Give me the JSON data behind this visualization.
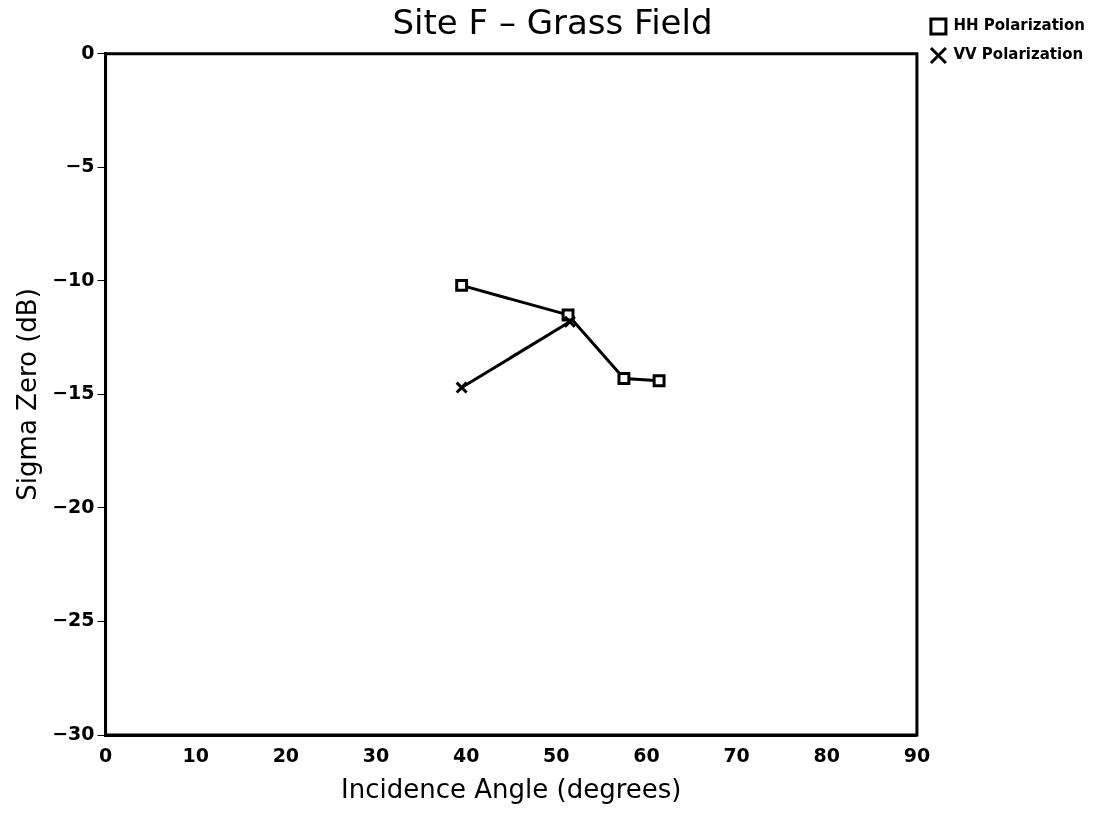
{
  "chart_data": {
    "type": "line",
    "title": "Site F – Grass Field",
    "xlabel": "Incidence Angle (degrees)",
    "ylabel": "Sigma Zero (dB)",
    "xlim": [
      0,
      90
    ],
    "xticks": [
      0,
      10,
      20,
      30,
      40,
      50,
      60,
      70,
      80,
      90
    ],
    "ylim": [
      -30,
      0
    ],
    "yticks": [
      -30,
      -25,
      -20,
      -15,
      -10,
      -5,
      0
    ],
    "grid": false,
    "legend": "top right",
    "line_style": "solid",
    "series": [
      {
        "name": "HH Polarization",
        "color": "#000000",
        "marker": "square",
        "x": [
          39.5,
          51.3,
          57.5,
          61.4
        ],
        "values": [
          -10.2,
          -11.5,
          -14.3,
          -14.4
        ]
      },
      {
        "name": "VV Polarization",
        "color": "#000000",
        "marker": "cross",
        "x": [
          39.5,
          51.5
        ],
        "values": [
          -14.7,
          -11.8
        ]
      }
    ]
  }
}
